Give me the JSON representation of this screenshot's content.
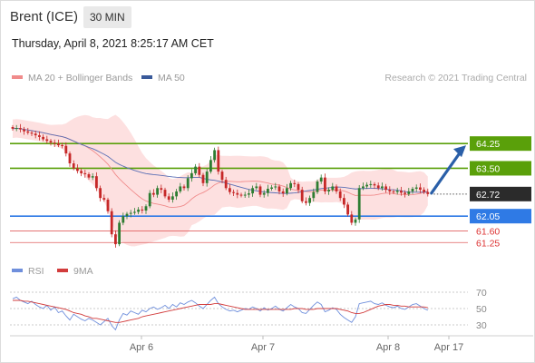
{
  "header": {
    "instrument": "Brent (ICE)",
    "timeframe": "30 MIN",
    "datetime": "Thursday, April 8, 2021 8:25:17 AM CET"
  },
  "legend": {
    "ma_bb": "MA 20 + Bollinger Bands",
    "ma50": "MA 50",
    "credit": "Research © 2021 Trading Central",
    "rsi": "RSI",
    "rsi_ma": "9MA"
  },
  "colors": {
    "bb_fill": "#fde0e0",
    "ma20": "#f08b8b",
    "ma50": "#5b6fb5",
    "bull": "#2e7d32",
    "bear": "#c62828",
    "green_level": "#5aa00a",
    "blue_level": "#2f7ae5",
    "red_level": "#e06060",
    "arrow": "#2a5fa8",
    "last_price": "#2b2b2b",
    "rsi": "#6f8fdc",
    "rsi_ma": "#d23c3c"
  },
  "chart_data": [
    {
      "type": "candlestick",
      "x_labels": [
        "Apr 6",
        "Apr 7",
        "Apr 8",
        "Apr 17"
      ],
      "ylim": [
        60.9,
        65.3
      ],
      "levels": [
        {
          "label": "64.25",
          "value": 64.25,
          "style": "green"
        },
        {
          "label": "63.50",
          "value": 63.5,
          "style": "green"
        },
        {
          "label": "62.72",
          "value": 62.72,
          "style": "last"
        },
        {
          "label": "62.05",
          "value": 62.05,
          "style": "blue"
        },
        {
          "label": "61.60",
          "value": 61.6,
          "style": "red"
        },
        {
          "label": "61.25",
          "value": 61.25,
          "style": "red"
        }
      ],
      "close": [
        64.7,
        64.72,
        64.68,
        64.62,
        64.58,
        64.55,
        64.5,
        64.45,
        64.38,
        64.33,
        64.28,
        64.25,
        64.2,
        64.18,
        63.95,
        63.65,
        63.5,
        63.42,
        63.35,
        63.32,
        63.22,
        63.26,
        62.9,
        62.6,
        62.55,
        62.2,
        61.5,
        61.2,
        61.85,
        62.05,
        62.12,
        62.15,
        62.18,
        62.25,
        62.22,
        62.35,
        62.75,
        62.7,
        62.9,
        62.85,
        62.65,
        62.55,
        62.65,
        62.8,
        62.95,
        62.9,
        63.2,
        63.35,
        63.55,
        63.3,
        63.05,
        63.4,
        63.75,
        64.05,
        63.4,
        63.15,
        62.9,
        62.78,
        62.75,
        62.7,
        62.68,
        62.7,
        62.74,
        62.9,
        62.95,
        62.7,
        62.75,
        62.88,
        62.92,
        62.95,
        62.8,
        62.74,
        62.9,
        63.05,
        63.02,
        62.85,
        62.5,
        62.45,
        62.6,
        62.78,
        63.1,
        63.22,
        62.8,
        62.85,
        62.95,
        62.8,
        62.6,
        62.4,
        62.1,
        61.85,
        61.95,
        62.9,
        62.95,
        63.0,
        63.02,
        62.98,
        62.9,
        62.95,
        62.85,
        62.8,
        62.78,
        62.82,
        62.76,
        62.72,
        62.8,
        62.88,
        62.92,
        62.85,
        62.78,
        62.72
      ],
      "rsi": {
        "ylim": [
          20,
          80
        ],
        "ticks": [
          "70",
          "50",
          "30"
        ],
        "rsi": [
          62,
          64,
          60,
          58,
          56,
          59,
          55,
          52,
          50,
          54,
          48,
          52,
          45,
          47,
          41,
          36,
          43,
          40,
          37,
          35,
          38,
          36,
          33,
          30,
          34,
          38,
          29,
          24,
          36,
          44,
          42,
          47,
          45,
          43,
          48,
          46,
          50,
          52,
          49,
          51,
          54,
          50,
          55,
          52,
          57,
          55,
          58,
          60,
          57,
          53,
          50,
          55,
          60,
          64,
          56,
          52,
          49,
          47,
          48,
          46,
          48,
          50,
          49,
          52,
          50,
          47,
          51,
          48,
          50,
          53,
          49,
          47,
          51,
          55,
          52,
          50,
          45,
          44,
          49,
          54,
          58,
          55,
          46,
          48,
          51,
          49,
          43,
          39,
          36,
          33,
          40,
          56,
          57,
          58,
          59,
          56,
          55,
          57,
          54,
          52,
          51,
          53,
          50,
          49,
          52,
          55,
          56,
          53,
          50,
          48
        ],
        "ma9": [
          60,
          60,
          60,
          59,
          59,
          58,
          57,
          56,
          55,
          54,
          53,
          52,
          51,
          50,
          49,
          47,
          45,
          44,
          43,
          41,
          40,
          38,
          38,
          37,
          36,
          35,
          34,
          33,
          33,
          34,
          35,
          36,
          37,
          38,
          40,
          41,
          42,
          43,
          44,
          45,
          46,
          47,
          48,
          49,
          50,
          51,
          52,
          53,
          54,
          55,
          55,
          55,
          55,
          56,
          56,
          55,
          54,
          53,
          52,
          51,
          50,
          49,
          49,
          49,
          49,
          49,
          49,
          49,
          49,
          49,
          49,
          49,
          49,
          49,
          50,
          50,
          50,
          49,
          49,
          49,
          50,
          50,
          50,
          50,
          50,
          50,
          49,
          48,
          47,
          45,
          44,
          44,
          45,
          47,
          49,
          51,
          53,
          54,
          55,
          55,
          54,
          54,
          53,
          53,
          52,
          52,
          52,
          52,
          52,
          51
        ]
      }
    }
  ]
}
